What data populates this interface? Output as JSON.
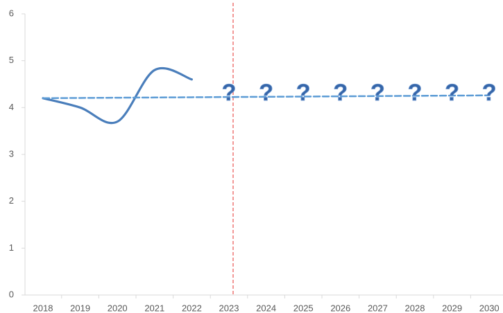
{
  "chart_data": {
    "type": "line",
    "categories": [
      "2018",
      "2019",
      "2020",
      "2021",
      "2022",
      "2023",
      "2024",
      "2025",
      "2026",
      "2027",
      "2028",
      "2029",
      "2030"
    ],
    "series": [
      {
        "color": "#4a7ebb",
        "values": [
          4.2,
          4.0,
          3.7,
          4.8,
          4.6,
          null,
          null,
          null,
          null,
          null,
          null,
          null,
          null
        ],
        "smooth": true
      },
      {
        "color": "#5b9bd5",
        "values": [
          4.2,
          4.205,
          4.21,
          4.215,
          4.22,
          4.225,
          4.23,
          4.235,
          4.24,
          4.245,
          4.25,
          4.255,
          4.26
        ],
        "dashed": true
      }
    ],
    "ylim": [
      0,
      6
    ],
    "yticks": [
      0,
      1,
      2,
      3,
      4,
      5,
      6
    ],
    "grid": false,
    "vline": {
      "category": "2023",
      "color": "#e8524f"
    },
    "annotations": [
      {
        "text": "?",
        "category": "2023"
      },
      {
        "text": "?",
        "category": "2024"
      },
      {
        "text": "?",
        "category": "2025"
      },
      {
        "text": "?",
        "category": "2026"
      },
      {
        "text": "?",
        "category": "2027"
      },
      {
        "text": "?",
        "category": "2028"
      },
      {
        "text": "?",
        "category": "2029"
      },
      {
        "text": "?",
        "category": "2030"
      }
    ]
  }
}
